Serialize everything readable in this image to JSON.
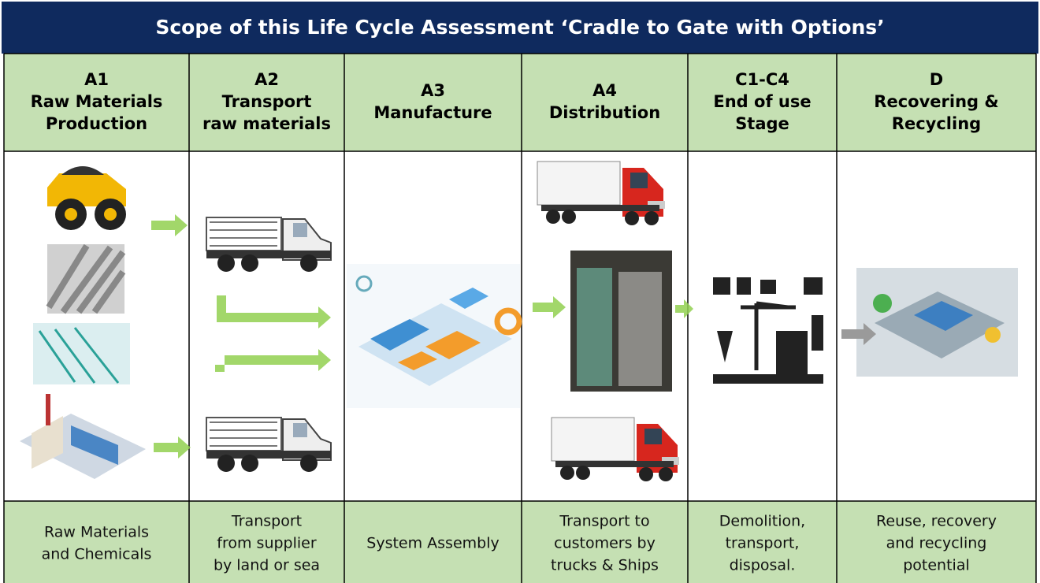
{
  "title": "Scope of this Life Cycle Assessment ‘Cradle to Gate with Options’",
  "columns": [
    {
      "header": [
        "A1",
        "Raw Materials",
        "Production"
      ],
      "footer": [
        "Raw Materials",
        "and Chemicals"
      ]
    },
    {
      "header": [
        "A2",
        "Transport",
        "raw materials"
      ],
      "footer": [
        "Transport",
        "from supplier",
        "by land or sea"
      ]
    },
    {
      "header": [
        "A3",
        "Manufacture"
      ],
      "footer": [
        "System Assembly"
      ]
    },
    {
      "header": [
        "A4",
        "Distribution"
      ],
      "footer": [
        "Transport to",
        "customers by",
        "trucks & Ships"
      ]
    },
    {
      "header": [
        "C1-C4",
        "End of use",
        "Stage"
      ],
      "footer": [
        "Demolition,",
        "transport,",
        "disposal."
      ]
    },
    {
      "header": [
        "D",
        "Recovering &",
        "Recycling"
      ],
      "footer": [
        "Reuse, recovery",
        "and recycling",
        "potential"
      ]
    }
  ]
}
